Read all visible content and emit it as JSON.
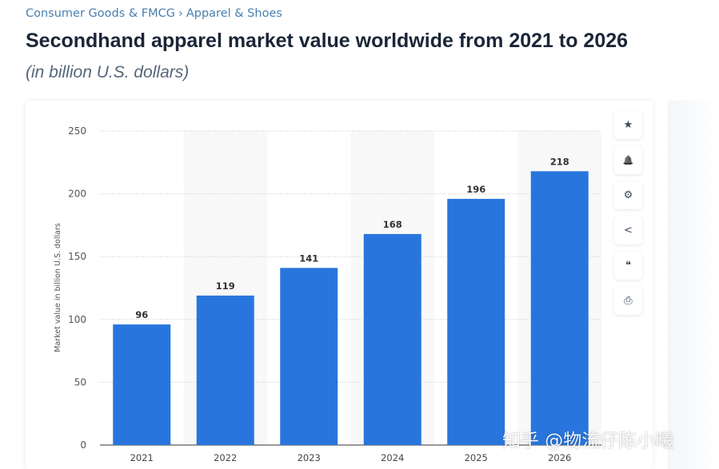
{
  "breadcrumb": [
    "Consumer Goods & FMCG",
    "›",
    "Apparel & Shoes"
  ],
  "header": {
    "title": "Secondhand apparel market value worldwide from 2021 to 2026",
    "subtitle": "(in billion U.S. dollars)"
  },
  "toolbar": [
    {
      "name": "star-icon",
      "glyph": "★"
    },
    {
      "name": "bell-icon",
      "glyph": "🔔"
    },
    {
      "name": "gear-icon",
      "glyph": "⚙"
    },
    {
      "name": "share-icon",
      "glyph": "<"
    },
    {
      "name": "quote-icon",
      "glyph": "❝"
    },
    {
      "name": "print-icon",
      "glyph": "⎙"
    }
  ],
  "watermark": "知乎 @物流仔陈小曦",
  "chart_data": {
    "type": "bar",
    "categories": [
      "2021",
      "2022",
      "2023",
      "2024",
      "2025",
      "2026"
    ],
    "values": [
      96,
      119,
      141,
      168,
      196,
      218
    ],
    "ylabel": "Market value in billion U.S. dollars",
    "ylim": [
      0,
      250
    ],
    "yticks": [
      0,
      50,
      100,
      150,
      200,
      250
    ],
    "grid": true,
    "bar_color": "#2876dd",
    "data_labels": true
  }
}
